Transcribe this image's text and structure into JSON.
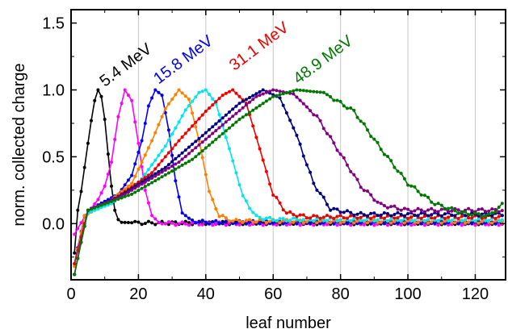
{
  "chart_data": {
    "type": "line",
    "title": "",
    "xlabel": "leaf number",
    "ylabel": "norm. collected charge",
    "xlim": [
      0,
      129
    ],
    "ylim": [
      -0.42,
      1.6
    ],
    "x_ticks": [
      0,
      20,
      40,
      60,
      80,
      100,
      120
    ],
    "y_ticks": [
      0.0,
      0.5,
      1.0,
      1.5
    ],
    "x_tick_labels": [
      "0",
      "20",
      "40",
      "60",
      "80",
      "100",
      "120"
    ],
    "y_tick_labels": [
      "0.0",
      "0.5",
      "1.0",
      "1.5"
    ],
    "grid": "vertical lines at x ticks",
    "annotations": [
      {
        "text": "5.4 MeV",
        "x": 10,
        "y": 1.02,
        "color": "#000000"
      },
      {
        "text": "15.8 MeV",
        "x": 26,
        "y": 1.04,
        "color": "#0000ee"
      },
      {
        "text": "31.1 MeV",
        "x": 48.5,
        "y": 1.14,
        "color": "#ee0000"
      },
      {
        "text": "48.9 MeV",
        "x": 67.5,
        "y": 1.04,
        "color": "#007700"
      }
    ],
    "series": [
      {
        "color": "#000000",
        "peak_x": 8,
        "peak_y": 1.0,
        "sigma_left": 2.5,
        "sigma_right": 2.3,
        "baseline": 0.005,
        "profile": [
          [
            1,
            -0.22
          ],
          [
            2,
            0.1
          ],
          [
            3,
            0.24
          ],
          [
            4,
            0.42
          ],
          [
            5,
            0.6
          ],
          [
            6,
            0.77
          ],
          [
            7,
            0.92
          ],
          [
            8,
            1.0
          ],
          [
            9,
            0.95
          ],
          [
            10,
            0.78
          ],
          [
            11,
            0.52
          ],
          [
            12,
            0.28
          ],
          [
            13,
            0.1
          ],
          [
            14,
            0.03
          ],
          [
            15,
            0.01
          ],
          [
            20,
            0.005
          ],
          [
            128,
            0.005
          ]
        ]
      },
      {
        "color": "#ff00ff",
        "peak_x": 16,
        "peak_y": 1.0,
        "sigma_left": 4.5,
        "sigma_right": 3.2,
        "baseline": 0.0,
        "profile": [
          [
            1,
            -0.08
          ],
          [
            4,
            0.05
          ],
          [
            8,
            0.18
          ],
          [
            10,
            0.28
          ],
          [
            12,
            0.46
          ],
          [
            14,
            0.8
          ],
          [
            16,
            1.0
          ],
          [
            18,
            0.92
          ],
          [
            20,
            0.6
          ],
          [
            22,
            0.25
          ],
          [
            24,
            0.06
          ],
          [
            26,
            0.01
          ],
          [
            30,
            0.0
          ],
          [
            128,
            0.0
          ]
        ]
      },
      {
        "color": "#0000ee",
        "peak_x": 25,
        "peak_y": 1.0,
        "sigma_left": 5.5,
        "sigma_right": 3.3,
        "baseline": 0.01,
        "profile": [
          [
            1,
            -0.3
          ],
          [
            4,
            0.06
          ],
          [
            8,
            0.14
          ],
          [
            14,
            0.22
          ],
          [
            18,
            0.36
          ],
          [
            21,
            0.62
          ],
          [
            23,
            0.88
          ],
          [
            25,
            1.0
          ],
          [
            27,
            0.96
          ],
          [
            29,
            0.7
          ],
          [
            31,
            0.32
          ],
          [
            33,
            0.08
          ],
          [
            36,
            0.02
          ],
          [
            40,
            0.01
          ],
          [
            128,
            0.01
          ]
        ]
      },
      {
        "color": "#ff8000",
        "peak_x": 32,
        "peak_y": 1.0,
        "sigma_left": 8.0,
        "sigma_right": 4.3,
        "baseline": 0.015,
        "profile": [
          [
            1,
            -0.32
          ],
          [
            4,
            0.06
          ],
          [
            10,
            0.14
          ],
          [
            18,
            0.3
          ],
          [
            24,
            0.62
          ],
          [
            28,
            0.86
          ],
          [
            32,
            1.0
          ],
          [
            35,
            0.93
          ],
          [
            38,
            0.62
          ],
          [
            41,
            0.24
          ],
          [
            44,
            0.06
          ],
          [
            48,
            0.02
          ],
          [
            128,
            0.015
          ]
        ]
      },
      {
        "color": "#00e5ee",
        "peak_x": 40,
        "peak_y": 1.0,
        "sigma_left": 10.0,
        "sigma_right": 5.2,
        "baseline": 0.02,
        "profile": [
          [
            1,
            -0.3
          ],
          [
            5,
            0.08
          ],
          [
            12,
            0.15
          ],
          [
            20,
            0.3
          ],
          [
            28,
            0.58
          ],
          [
            34,
            0.85
          ],
          [
            38,
            0.98
          ],
          [
            40,
            1.0
          ],
          [
            43,
            0.9
          ],
          [
            47,
            0.56
          ],
          [
            51,
            0.2
          ],
          [
            55,
            0.05
          ],
          [
            60,
            0.03
          ],
          [
            128,
            0.03
          ]
        ]
      },
      {
        "color": "#ee0000",
        "peak_x": 48,
        "peak_y": 1.0,
        "sigma_left": 13.0,
        "sigma_right": 6.2,
        "baseline": 0.035,
        "profile": [
          [
            1,
            -0.3
          ],
          [
            5,
            0.1
          ],
          [
            12,
            0.17
          ],
          [
            24,
            0.38
          ],
          [
            32,
            0.62
          ],
          [
            40,
            0.84
          ],
          [
            45,
            0.96
          ],
          [
            48,
            1.0
          ],
          [
            52,
            0.9
          ],
          [
            56,
            0.56
          ],
          [
            60,
            0.22
          ],
          [
            64,
            0.08
          ],
          [
            70,
            0.05
          ],
          [
            128,
            0.05
          ]
        ]
      },
      {
        "color": "#000080",
        "peak_x": 57,
        "peak_y": 1.0,
        "sigma_left": 16.0,
        "sigma_right": 7.5,
        "baseline": 0.06,
        "profile": [
          [
            1,
            -0.38
          ],
          [
            5,
            0.1
          ],
          [
            14,
            0.2
          ],
          [
            28,
            0.42
          ],
          [
            40,
            0.68
          ],
          [
            50,
            0.9
          ],
          [
            57,
            1.0
          ],
          [
            62,
            0.94
          ],
          [
            67,
            0.66
          ],
          [
            72,
            0.3
          ],
          [
            77,
            0.11
          ],
          [
            85,
            0.07
          ],
          [
            128,
            0.07
          ]
        ]
      },
      {
        "color": "#800080",
        "peak_x": 60,
        "peak_y": 1.0,
        "sigma_left": 18.5,
        "sigma_right": 11.5,
        "baseline": 0.09,
        "profile": [
          [
            1,
            -0.38
          ],
          [
            5,
            0.1
          ],
          [
            16,
            0.22
          ],
          [
            32,
            0.46
          ],
          [
            46,
            0.76
          ],
          [
            55,
            0.95
          ],
          [
            60,
            1.0
          ],
          [
            66,
            0.97
          ],
          [
            73,
            0.8
          ],
          [
            80,
            0.52
          ],
          [
            86,
            0.28
          ],
          [
            92,
            0.14
          ],
          [
            100,
            0.1
          ],
          [
            128,
            0.1
          ]
        ]
      },
      {
        "color": "#007700",
        "peak_x": 67,
        "peak_y": 1.0,
        "sigma_left": 20.5,
        "sigma_right": 17.0,
        "baseline": 0.06,
        "profile": [
          [
            1,
            -0.38
          ],
          [
            5,
            0.1
          ],
          [
            18,
            0.22
          ],
          [
            36,
            0.48
          ],
          [
            50,
            0.78
          ],
          [
            60,
            0.95
          ],
          [
            67,
            1.0
          ],
          [
            75,
            0.98
          ],
          [
            84,
            0.84
          ],
          [
            92,
            0.56
          ],
          [
            100,
            0.3
          ],
          [
            108,
            0.15
          ],
          [
            116,
            0.08
          ],
          [
            124,
            0.06
          ],
          [
            128,
            0.14
          ]
        ]
      }
    ]
  }
}
